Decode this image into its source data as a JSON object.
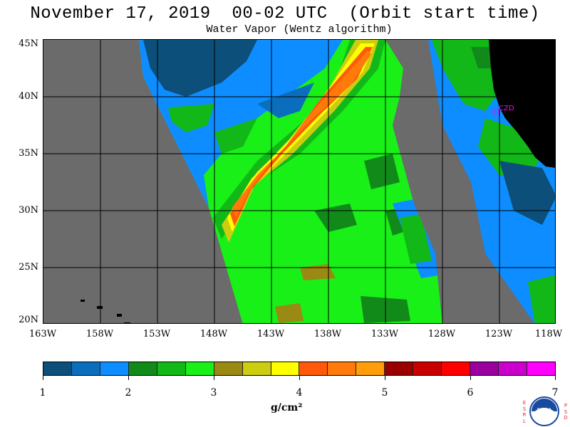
{
  "title": "November 17, 2019  00-02 UTC  (Orbit start time)",
  "subtitle": "Water Vapor (Wentz algorithm)",
  "map": {
    "lat_labels": [
      "45N",
      "40N",
      "35N",
      "30N",
      "25N",
      "20N"
    ],
    "lon_labels": [
      "163W",
      "158W",
      "153W",
      "148W",
      "143W",
      "138W",
      "133W",
      "128W",
      "123W",
      "118W"
    ],
    "station_label": "CZD",
    "no_data_color": "#6b6b6b",
    "land_color": "#000000",
    "grid_color": "#000000"
  },
  "colorbar": {
    "colors": [
      "#0b4f7a",
      "#0a6ebd",
      "#0d8dff",
      "#118a1a",
      "#12b818",
      "#18f018",
      "#9a8a14",
      "#cccc10",
      "#ffff00",
      "#ff5a0a",
      "#ff7a0a",
      "#ff9e0a",
      "#990000",
      "#c80000",
      "#ff0000",
      "#99009e",
      "#cc00cc",
      "#ff00ff"
    ],
    "tick_labels": [
      "1",
      "2",
      "3",
      "4",
      "5",
      "6",
      "7"
    ],
    "units": "g/cm²"
  },
  "logo": {
    "left_letters": [
      "E",
      "S",
      "R",
      "L"
    ],
    "right_letters": [
      "P",
      "S",
      "D"
    ],
    "name": "NOAA"
  }
}
